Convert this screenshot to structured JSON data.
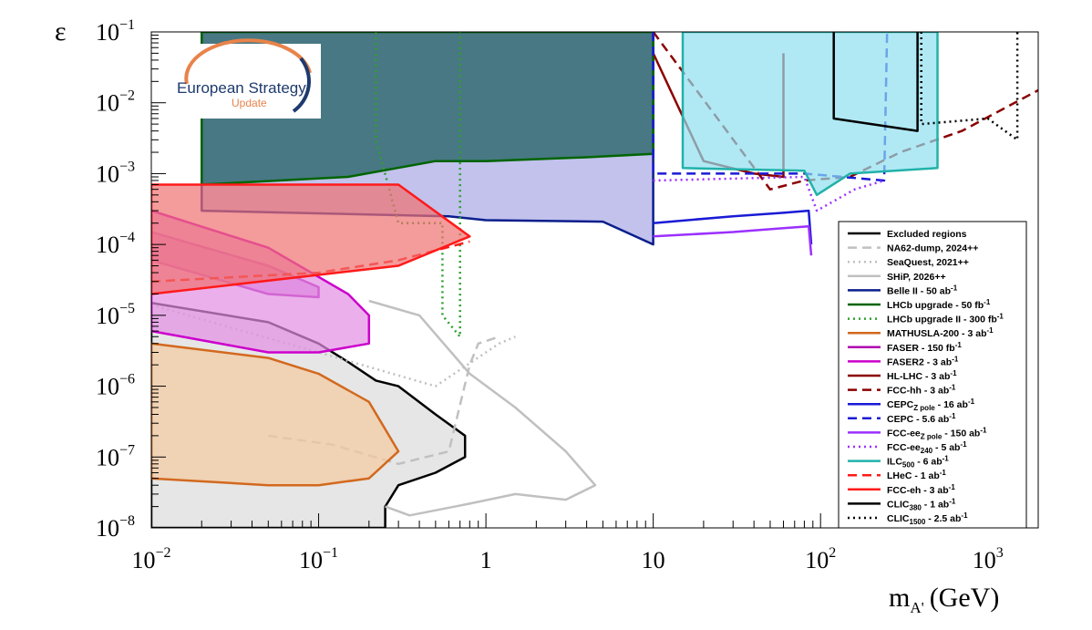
{
  "chart_data": {
    "type": "area",
    "xlabel": "m",
    "xlabel_sub": "A'",
    "xlabel_unit": "(GeV)",
    "ylabel": "ε",
    "x_scale": "log",
    "y_scale": "log",
    "xlim": [
      0.01,
      2000
    ],
    "ylim": [
      1e-08,
      0.1
    ],
    "x_ticks": [
      {
        "value": 0.01,
        "base": "10",
        "exp": "−2"
      },
      {
        "value": 0.1,
        "base": "10",
        "exp": "−1"
      },
      {
        "value": 1,
        "base": "1",
        "exp": ""
      },
      {
        "value": 10,
        "base": "10",
        "exp": ""
      },
      {
        "value": 100,
        "base": "10",
        "exp": "2"
      },
      {
        "value": 1000,
        "base": "10",
        "exp": "3"
      }
    ],
    "y_ticks": [
      {
        "value": 1e-08,
        "base": "10",
        "exp": "−8"
      },
      {
        "value": 1e-07,
        "base": "10",
        "exp": "−7"
      },
      {
        "value": 1e-06,
        "base": "10",
        "exp": "−6"
      },
      {
        "value": 1e-05,
        "base": "10",
        "exp": "−5"
      },
      {
        "value": 0.0001,
        "base": "10",
        "exp": "−4"
      },
      {
        "value": 0.001,
        "base": "10",
        "exp": "−3"
      },
      {
        "value": 0.01,
        "base": "10",
        "exp": "−2"
      },
      {
        "value": 0.1,
        "base": "10",
        "exp": "−1"
      }
    ],
    "logo": {
      "line1": "European Strategy",
      "line2": "Update"
    },
    "legend_placement": "right",
    "series": [
      {
        "name": "Excluded regions",
        "color": "#000000",
        "style": "solid",
        "fill": "#dcdcdc",
        "points": [
          [
            0.01,
            1e-08
          ],
          [
            0.01,
            1.5e-05
          ],
          [
            0.05,
            8e-06
          ],
          [
            0.1,
            4e-06
          ],
          [
            0.15,
            2.2e-06
          ],
          [
            0.22,
            1.2e-06
          ],
          [
            0.3,
            1e-06
          ],
          [
            0.5,
            4e-07
          ],
          [
            0.75,
            2e-07
          ],
          [
            0.75,
            1e-07
          ],
          [
            0.5,
            6e-08
          ],
          [
            0.3,
            4e-08
          ],
          [
            0.25,
            2e-08
          ],
          [
            0.25,
            1e-08
          ]
        ]
      },
      {
        "name": "NA62-dump, 2024++",
        "color": "#c0c0c0",
        "style": "dashed",
        "points": [
          [
            0.05,
            2e-07
          ],
          [
            0.12,
            1.5e-07
          ],
          [
            0.3,
            8e-08
          ],
          [
            0.6,
            1.2e-07
          ],
          [
            0.8,
            2e-06
          ],
          [
            0.9,
            4e-06
          ],
          [
            1.2,
            5e-06
          ]
        ]
      },
      {
        "name": "SeaQuest, 2021++",
        "color": "#c0c0c0",
        "style": "dotted",
        "points": [
          [
            0.01,
            1.4e-05
          ],
          [
            0.1,
            3e-06
          ],
          [
            0.5,
            1e-06
          ],
          [
            1.2,
            4e-06
          ],
          [
            1.5,
            5e-06
          ]
        ]
      },
      {
        "name": "SHiP, 2026++",
        "color": "#c0c0c0",
        "style": "solid",
        "points": [
          [
            0.2,
            1.6e-05
          ],
          [
            0.4,
            1e-05
          ],
          [
            0.8,
            1.5e-06
          ],
          [
            1.5,
            5e-07
          ],
          [
            3,
            1.2e-07
          ],
          [
            4.5,
            4e-08
          ],
          [
            3,
            2.5e-08
          ],
          [
            1.5,
            3e-08
          ],
          [
            0.8,
            2.2e-08
          ],
          [
            0.35,
            1.5e-08
          ],
          [
            0.25,
            2e-08
          ]
        ]
      },
      {
        "name": "Belle II - 50 ab",
        "unit_sup": "-1",
        "color": "#0a1e8c",
        "style": "solid",
        "fill": "#a8a8e6",
        "points": [
          [
            0.02,
            0.1
          ],
          [
            0.02,
            0.0003
          ],
          [
            0.6,
            0.00025
          ],
          [
            1,
            0.00022
          ],
          [
            5,
            0.00021
          ],
          [
            10,
            0.0001
          ],
          [
            10,
            0.1
          ]
        ]
      },
      {
        "name": "LHCb upgrade - 50 fb",
        "unit_sup": "-1",
        "color": "#006400",
        "style": "solid",
        "fill": "#1f5f5f",
        "fill_opacity": 0.75,
        "points": [
          [
            0.02,
            0.1
          ],
          [
            0.02,
            0.0007
          ],
          [
            0.15,
            0.0009
          ],
          [
            0.5,
            0.0015
          ],
          [
            1,
            0.0015
          ],
          [
            4,
            0.0017
          ],
          [
            10,
            0.0019
          ],
          [
            10,
            0.1
          ]
        ]
      },
      {
        "name": "LHCb upgrade II - 300 fb",
        "unit_sup": "-1",
        "color": "#2ca02c",
        "style": "dotted",
        "points": [
          [
            0.22,
            0.1
          ],
          [
            0.22,
            0.003
          ],
          [
            0.3,
            0.0002
          ],
          [
            0.55,
            0.0002
          ],
          [
            0.55,
            1e-05
          ],
          [
            0.7,
            5e-06
          ],
          [
            0.7,
            0.1
          ]
        ]
      },
      {
        "name": "MATHUSLA-200 - 3 ab",
        "unit_sup": "-1",
        "color": "#d2691e",
        "style": "solid",
        "fill": "#f4c9a0",
        "points": [
          [
            0.01,
            4e-06
          ],
          [
            0.05,
            2.5e-06
          ],
          [
            0.1,
            1.5e-06
          ],
          [
            0.2,
            6e-07
          ],
          [
            0.3,
            1.2e-07
          ],
          [
            0.2,
            5e-08
          ],
          [
            0.1,
            4e-08
          ],
          [
            0.05,
            4e-08
          ],
          [
            0.01,
            5e-08
          ]
        ]
      },
      {
        "name": "FASER - 150 fb",
        "unit_sup": "-1",
        "color": "#b000b0",
        "style": "solid",
        "fill": "#d36fd3",
        "points": [
          [
            0.01,
            0.00015
          ],
          [
            0.05,
            5e-05
          ],
          [
            0.1,
            2.5e-05
          ],
          [
            0.1,
            1.8e-05
          ],
          [
            0.05,
            2e-05
          ],
          [
            0.01,
            6e-05
          ]
        ]
      },
      {
        "name": "FASER2 - 3 ab",
        "unit_sup": "-1",
        "color": "#cc00cc",
        "style": "solid",
        "fill": "#e28fe2",
        "points": [
          [
            0.01,
            0.0003
          ],
          [
            0.05,
            9e-05
          ],
          [
            0.15,
            2e-05
          ],
          [
            0.2,
            1e-05
          ],
          [
            0.2,
            4e-06
          ],
          [
            0.1,
            3e-06
          ],
          [
            0.05,
            3e-06
          ],
          [
            0.01,
            6e-06
          ]
        ]
      },
      {
        "name": "HL-LHC - 3 ab",
        "unit_sup": "-1",
        "color": "#8b0000",
        "style": "solid",
        "points": [
          [
            10,
            0.05
          ],
          [
            20,
            0.0015
          ],
          [
            40,
            0.001
          ],
          [
            60,
            0.0009
          ],
          [
            60,
            0.05
          ]
        ]
      },
      {
        "name": "FCC-hh - 3 ab",
        "unit_sup": "-1",
        "color": "#8b0000",
        "style": "dashed",
        "points": [
          [
            10,
            0.1
          ],
          [
            50,
            0.0006
          ],
          [
            80,
            0.0008
          ],
          [
            150,
            0.0009
          ],
          [
            300,
            0.002
          ],
          [
            700,
            0.004
          ],
          [
            2000,
            0.015
          ]
        ]
      },
      {
        "name": "CEPC",
        "name_sub": "Z pole",
        "name_tail": " - 16 ab",
        "unit_sup": "-1",
        "color": "#1a1ad6",
        "style": "solid",
        "points": [
          [
            10,
            0.0002
          ],
          [
            30,
            0.00025
          ],
          [
            60,
            0.00028
          ],
          [
            85,
            0.0003
          ],
          [
            88,
            0.0001
          ]
        ]
      },
      {
        "name": "CEPC  - 5.6 ab",
        "unit_sup": "-1",
        "color": "#1a1ad6",
        "style": "dashed",
        "points": [
          [
            10,
            0.1
          ],
          [
            10,
            0.001
          ],
          [
            80,
            0.001
          ],
          [
            240,
            0.0008
          ],
          [
            250,
            0.1
          ]
        ]
      },
      {
        "name": "FCC-ee",
        "name_sub": "Z pole",
        "name_tail": " - 150 ab",
        "unit_sup": "-1",
        "color": "#9b30ff",
        "style": "solid",
        "points": [
          [
            10,
            0.00013
          ],
          [
            30,
            0.00015
          ],
          [
            60,
            0.00017
          ],
          [
            85,
            0.00018
          ],
          [
            88,
            7e-05
          ]
        ]
      },
      {
        "name": "FCC-ee",
        "name_sub": "240",
        "name_tail": " - 5 ab",
        "unit_sup": "-1",
        "color": "#9b30ff",
        "style": "dotted",
        "points": [
          [
            10,
            0.0008
          ],
          [
            80,
            0.0009
          ],
          [
            95,
            0.0003
          ],
          [
            160,
            0.0006
          ],
          [
            240,
            0.0008
          ]
        ]
      },
      {
        "name": "ILC",
        "name_sub": "500",
        "name_tail": " - 6 ab",
        "unit_sup": "-1",
        "color": "#20b2aa",
        "style": "solid",
        "fill": "#8fe0f0",
        "points": [
          [
            15,
            0.1
          ],
          [
            15,
            0.0012
          ],
          [
            80,
            0.0011
          ],
          [
            95,
            0.0005
          ],
          [
            150,
            0.001
          ],
          [
            500,
            0.0012
          ],
          [
            500,
            0.1
          ]
        ]
      },
      {
        "name": "LHeC - 1 ab",
        "unit_sup": "-1",
        "color": "#ff1a1a",
        "style": "dashed",
        "points": [
          [
            0.01,
            3e-05
          ],
          [
            0.1,
            4e-05
          ],
          [
            0.3,
            6e-05
          ],
          [
            0.8,
            0.00011
          ]
        ]
      },
      {
        "name": "FCC-eh - 3 ab",
        "unit_sup": "-1",
        "color": "#ff1a1a",
        "style": "solid",
        "fill": "#f07070",
        "points": [
          [
            0.01,
            0.0007
          ],
          [
            0.3,
            0.0007
          ],
          [
            0.8,
            0.00013
          ],
          [
            0.3,
            5e-05
          ],
          [
            0.01,
            2e-05
          ]
        ]
      },
      {
        "name": "CLIC",
        "name_sub": "380",
        "name_tail": " - 1 ab",
        "unit_sup": "-1",
        "color": "#000000",
        "style": "solid",
        "points": [
          [
            120,
            0.1
          ],
          [
            120,
            0.006
          ],
          [
            380,
            0.004
          ],
          [
            380,
            0.1
          ]
        ]
      },
      {
        "name": "CLIC",
        "name_sub": "1500",
        "name_tail": " - 2.5 ab",
        "unit_sup": "-1",
        "color": "#000000",
        "style": "dotted",
        "points": [
          [
            400,
            0.1
          ],
          [
            400,
            0.005
          ],
          [
            1000,
            0.006
          ],
          [
            1500,
            0.003
          ],
          [
            1500,
            0.1
          ]
        ]
      }
    ]
  }
}
